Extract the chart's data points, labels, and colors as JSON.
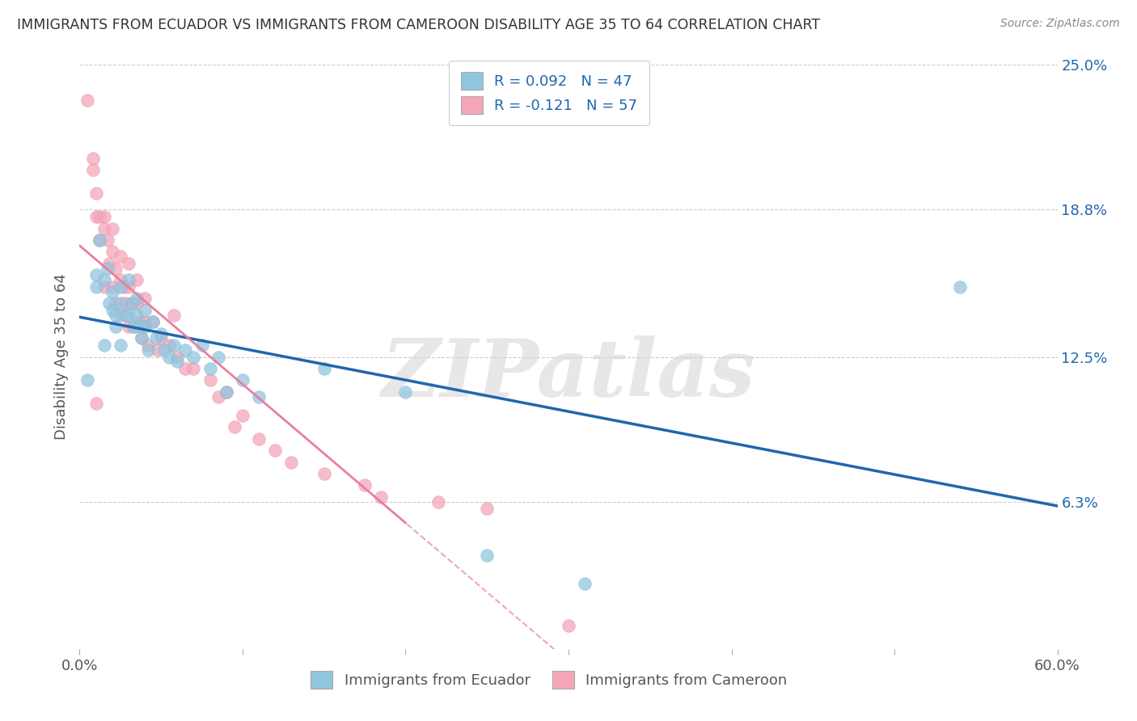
{
  "title": "IMMIGRANTS FROM ECUADOR VS IMMIGRANTS FROM CAMEROON DISABILITY AGE 35 TO 64 CORRELATION CHART",
  "source": "Source: ZipAtlas.com",
  "ylabel": "Disability Age 35 to 64",
  "xlim": [
    0.0,
    0.6
  ],
  "ylim": [
    0.0,
    0.25
  ],
  "ytick_labels_right": [
    "25.0%",
    "18.8%",
    "12.5%",
    "6.3%"
  ],
  "ytick_vals_right": [
    0.25,
    0.188,
    0.125,
    0.063
  ],
  "R_ecuador": 0.092,
  "N_ecuador": 47,
  "R_cameroon": -0.121,
  "N_cameroon": 57,
  "color_ecuador": "#92c5de",
  "color_cameroon": "#f4a6b8",
  "ec_edge_color": "#6aafd4",
  "cam_edge_color": "#e87fa0",
  "line_color_ecuador": "#2166ac",
  "line_color_cameroon": "#e87fa0",
  "background_color": "#ffffff",
  "watermark": "ZIPatlas",
  "ecuador_scatter_x": [
    0.005,
    0.01,
    0.01,
    0.012,
    0.015,
    0.015,
    0.017,
    0.018,
    0.02,
    0.02,
    0.022,
    0.022,
    0.025,
    0.025,
    0.025,
    0.028,
    0.03,
    0.03,
    0.032,
    0.033,
    0.035,
    0.035,
    0.037,
    0.038,
    0.04,
    0.04,
    0.042,
    0.045,
    0.047,
    0.05,
    0.052,
    0.055,
    0.058,
    0.06,
    0.065,
    0.07,
    0.075,
    0.08,
    0.085,
    0.09,
    0.1,
    0.11,
    0.15,
    0.2,
    0.25,
    0.31,
    0.54
  ],
  "ecuador_scatter_y": [
    0.115,
    0.16,
    0.155,
    0.175,
    0.13,
    0.158,
    0.163,
    0.148,
    0.153,
    0.145,
    0.138,
    0.143,
    0.155,
    0.148,
    0.13,
    0.143,
    0.158,
    0.143,
    0.148,
    0.138,
    0.15,
    0.143,
    0.138,
    0.133,
    0.145,
    0.138,
    0.128,
    0.14,
    0.133,
    0.135,
    0.128,
    0.125,
    0.13,
    0.123,
    0.128,
    0.125,
    0.13,
    0.12,
    0.125,
    0.11,
    0.115,
    0.108,
    0.12,
    0.11,
    0.04,
    0.028,
    0.155
  ],
  "cameroon_scatter_x": [
    0.005,
    0.008,
    0.008,
    0.01,
    0.01,
    0.01,
    0.012,
    0.012,
    0.015,
    0.015,
    0.015,
    0.017,
    0.018,
    0.02,
    0.02,
    0.02,
    0.022,
    0.022,
    0.025,
    0.025,
    0.025,
    0.027,
    0.028,
    0.03,
    0.03,
    0.03,
    0.032,
    0.033,
    0.035,
    0.035,
    0.037,
    0.038,
    0.04,
    0.04,
    0.042,
    0.045,
    0.048,
    0.05,
    0.055,
    0.058,
    0.06,
    0.065,
    0.07,
    0.08,
    0.085,
    0.09,
    0.095,
    0.1,
    0.11,
    0.12,
    0.13,
    0.15,
    0.175,
    0.185,
    0.22,
    0.25,
    0.3
  ],
  "cameroon_scatter_y": [
    0.235,
    0.21,
    0.205,
    0.195,
    0.185,
    0.105,
    0.185,
    0.175,
    0.185,
    0.18,
    0.155,
    0.175,
    0.165,
    0.18,
    0.17,
    0.155,
    0.163,
    0.148,
    0.168,
    0.158,
    0.143,
    0.155,
    0.148,
    0.165,
    0.155,
    0.138,
    0.148,
    0.138,
    0.158,
    0.148,
    0.14,
    0.133,
    0.15,
    0.14,
    0.13,
    0.14,
    0.128,
    0.133,
    0.13,
    0.143,
    0.125,
    0.12,
    0.12,
    0.115,
    0.108,
    0.11,
    0.095,
    0.1,
    0.09,
    0.085,
    0.08,
    0.075,
    0.07,
    0.065,
    0.063,
    0.06,
    0.01
  ]
}
